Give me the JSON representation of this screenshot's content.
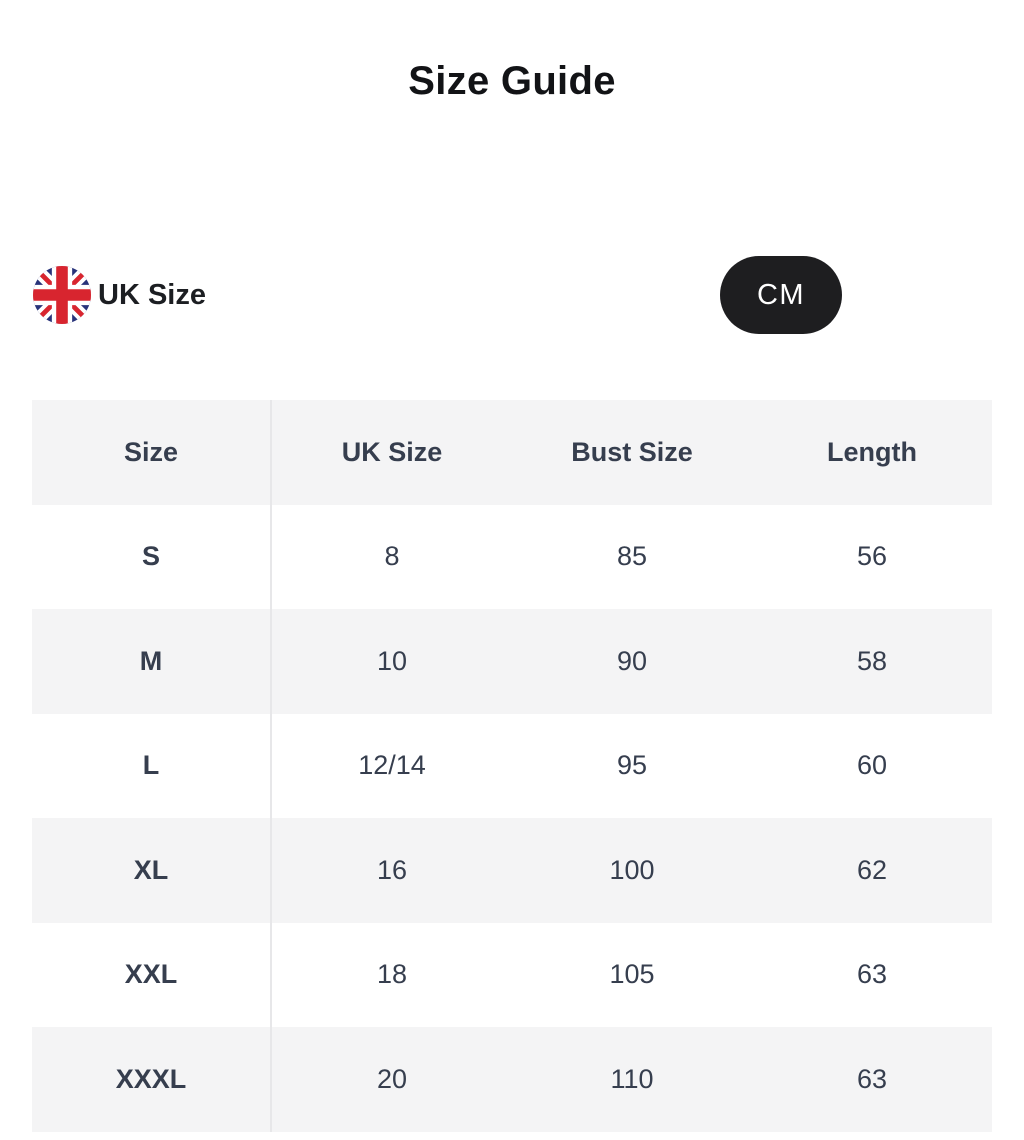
{
  "page": {
    "title": "Size Guide"
  },
  "unit_bar": {
    "region": {
      "label": "UK Size",
      "flag_icon": "uk-flag"
    },
    "unit_toggle": {
      "label": "CM"
    }
  },
  "size_table": {
    "columns": [
      "Size",
      "UK Size",
      "Bust Size",
      "Length"
    ],
    "rows": [
      [
        "S",
        "8",
        "85",
        "56"
      ],
      [
        "M",
        "10",
        "90",
        "58"
      ],
      [
        "L",
        "12/14",
        "95",
        "60"
      ],
      [
        "XL",
        "16",
        "100",
        "62"
      ],
      [
        "XXL",
        "18",
        "105",
        "63"
      ],
      [
        "XXXL",
        "20",
        "110",
        "63"
      ]
    ]
  },
  "colors": {
    "toggle_bg": "#1e1e20",
    "toggle_text": "#ffffff",
    "table_stripe": "#f4f4f5",
    "table_text": "#363e4e",
    "column_divider": "#e7e7e9",
    "flag_navy": "#28337a",
    "flag_red": "#d8252f"
  }
}
